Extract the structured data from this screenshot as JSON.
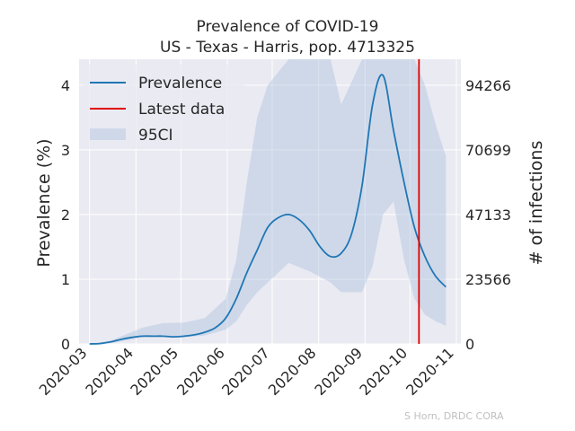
{
  "chart_data": {
    "type": "line",
    "title": "Prevalence of COVID-19",
    "subtitle": "US - Texas - Harris, pop. 4713325",
    "xlabel": "",
    "ylabel": "Prevalence (%)",
    "y2label": "# of infections",
    "credit": "S Horn, DRDC CORA",
    "xlim": [
      "2020-02-23",
      "2020-11-04"
    ],
    "ylim": [
      0,
      4.4
    ],
    "x_ticks": [
      "2020-03",
      "2020-04",
      "2020-05",
      "2020-06",
      "2020-07",
      "2020-08",
      "2020-09",
      "2020-10",
      "2020-11"
    ],
    "y_ticks": [
      0,
      1,
      2,
      3,
      4
    ],
    "y2_ticks": [
      0,
      23566,
      47133,
      70699,
      94266
    ],
    "y2_per_percent": 23566,
    "grid": true,
    "legend_position": "top-left",
    "colors": {
      "line": "#1f77b4",
      "latest": "#e00000",
      "band": "#b0c4de",
      "background": "#eaeaf2",
      "grid": "#ffffff"
    },
    "series": [
      {
        "name": "Prevalence",
        "x": [
          "2020-03-01",
          "2020-03-08",
          "2020-03-15",
          "2020-03-22",
          "2020-03-29",
          "2020-04-05",
          "2020-04-12",
          "2020-04-19",
          "2020-04-26",
          "2020-05-03",
          "2020-05-10",
          "2020-05-17",
          "2020-05-24",
          "2020-05-31",
          "2020-06-07",
          "2020-06-14",
          "2020-06-21",
          "2020-06-28",
          "2020-07-05",
          "2020-07-12",
          "2020-07-19",
          "2020-07-26",
          "2020-08-02",
          "2020-08-09",
          "2020-08-16",
          "2020-08-23",
          "2020-08-30",
          "2020-09-06",
          "2020-09-13",
          "2020-09-20",
          "2020-09-27",
          "2020-10-04",
          "2020-10-11",
          "2020-10-18",
          "2020-10-25"
        ],
        "values": [
          0.0,
          0.005,
          0.03,
          0.07,
          0.1,
          0.12,
          0.12,
          0.12,
          0.11,
          0.12,
          0.14,
          0.18,
          0.25,
          0.4,
          0.7,
          1.1,
          1.45,
          1.8,
          1.95,
          2.0,
          1.92,
          1.75,
          1.5,
          1.35,
          1.4,
          1.7,
          2.45,
          3.7,
          4.15,
          3.3,
          2.5,
          1.8,
          1.35,
          1.05,
          0.88
        ]
      },
      {
        "name": "95CI",
        "x": [
          "2020-03-01",
          "2020-03-15",
          "2020-03-29",
          "2020-04-05",
          "2020-04-19",
          "2020-05-03",
          "2020-05-17",
          "2020-05-31",
          "2020-06-07",
          "2020-06-14",
          "2020-06-21",
          "2020-06-28",
          "2020-07-12",
          "2020-07-26",
          "2020-08-09",
          "2020-08-16",
          "2020-08-30",
          "2020-09-06",
          "2020-09-13",
          "2020-09-20",
          "2020-09-27",
          "2020-10-04",
          "2020-10-11",
          "2020-10-18",
          "2020-10-25"
        ],
        "lower": [
          0.0,
          0.01,
          0.07,
          0.1,
          0.11,
          0.1,
          0.13,
          0.22,
          0.35,
          0.6,
          0.8,
          0.95,
          1.25,
          1.12,
          0.95,
          0.8,
          0.8,
          1.2,
          2.0,
          2.2,
          1.3,
          0.7,
          0.45,
          0.35,
          0.28
        ],
        "upper": [
          0.0,
          0.05,
          0.18,
          0.25,
          0.32,
          0.33,
          0.4,
          0.7,
          1.3,
          2.5,
          3.5,
          4.0,
          4.4,
          4.4,
          4.4,
          3.7,
          4.4,
          4.4,
          4.4,
          4.4,
          4.4,
          4.4,
          4.0,
          3.4,
          2.9
        ]
      }
    ],
    "markers": [
      {
        "name": "Latest data",
        "x": "2020-10-07"
      }
    ]
  }
}
